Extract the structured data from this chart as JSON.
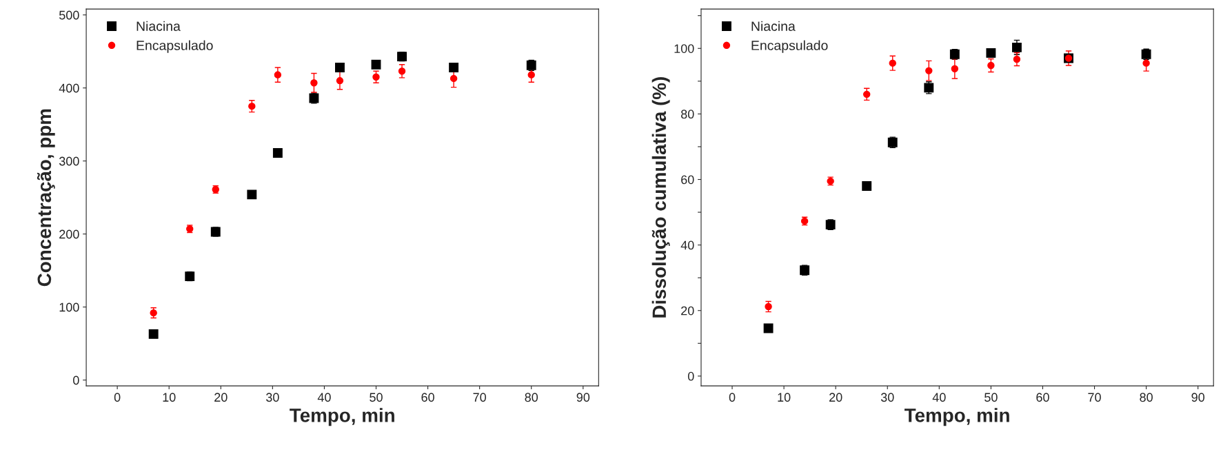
{
  "chart_data": [
    {
      "type": "scatter",
      "xlabel": "Tempo, min",
      "ylabel": "Concentração, ppm",
      "x": [
        7,
        14,
        19,
        26,
        31,
        38,
        43,
        50,
        55,
        65,
        80
      ],
      "xlim": [
        -6,
        93
      ],
      "ylim": [
        -8,
        508
      ],
      "xticks": [
        0,
        10,
        20,
        30,
        40,
        50,
        60,
        70,
        80,
        90
      ],
      "yticks": [
        0,
        100,
        200,
        300,
        400,
        500
      ],
      "legend": "top left",
      "grid": false,
      "series": [
        {
          "name": "Niacina",
          "color": "#000000",
          "marker": "square",
          "values": [
            63,
            142,
            203,
            254,
            311,
            386,
            428,
            432,
            443,
            428,
            431
          ],
          "errors": [
            5,
            6,
            6,
            5,
            6,
            7,
            6,
            5,
            6,
            5,
            7
          ]
        },
        {
          "name": "Encapsulado",
          "color": "#ff0000",
          "marker": "circle",
          "values": [
            92,
            207,
            261,
            375,
            418,
            407,
            410,
            415,
            423,
            413,
            418
          ],
          "errors": [
            7,
            5,
            5,
            8,
            10,
            13,
            12,
            8,
            9,
            12,
            10
          ]
        }
      ]
    },
    {
      "type": "scatter",
      "xlabel": "Tempo, min",
      "ylabel": "Dissolução cumulativa (%)",
      "x": [
        7,
        14,
        19,
        26,
        31,
        38,
        43,
        50,
        55,
        65,
        80
      ],
      "xlim": [
        -6,
        93
      ],
      "ylim": [
        -3,
        112
      ],
      "xticks": [
        0,
        10,
        20,
        30,
        40,
        50,
        60,
        70,
        80,
        90
      ],
      "yticks": [
        0,
        {
          "value": 10,
          "label": null
        },
        20,
        {
          "value": 30,
          "label": null
        },
        40,
        {
          "value": 50,
          "label": null
        },
        60,
        {
          "value": 70,
          "label": null
        },
        80,
        {
          "value": 90,
          "label": null
        },
        100,
        {
          "value": 110,
          "label": null
        }
      ],
      "legend": "top left",
      "grid": false,
      "series": [
        {
          "name": "Niacina",
          "color": "#000000",
          "marker": "square",
          "values": [
            14.6,
            32.3,
            46.2,
            58,
            71.3,
            88,
            98.2,
            98.6,
            100.3,
            97,
            98.2
          ],
          "errors": [
            1.2,
            1.5,
            1.5,
            1.2,
            1.6,
            1.8,
            1.5,
            1.2,
            2.2,
            1.2,
            1.6
          ]
        },
        {
          "name": "Encapsulado",
          "color": "#ff0000",
          "marker": "circle",
          "values": [
            21.2,
            47.3,
            59.5,
            86,
            95.5,
            93.2,
            93.8,
            94.8,
            96.7,
            97,
            95.5
          ],
          "errors": [
            1.6,
            1.2,
            1.2,
            1.8,
            2.2,
            3,
            3,
            2,
            2,
            2.2,
            2.4
          ]
        }
      ]
    }
  ]
}
